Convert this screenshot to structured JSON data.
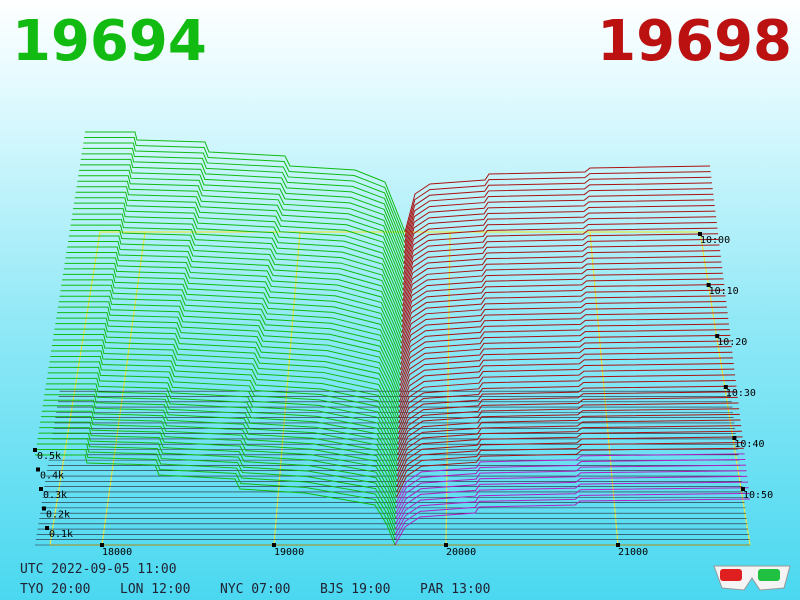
{
  "header": {
    "bid": "19694",
    "ask": "19698"
  },
  "price_labels": [
    "18000",
    "19000",
    "20000",
    "21000"
  ],
  "depth_labels": [
    "0.5k",
    "0.4k",
    "0.3k",
    "0.2k",
    "0.1k"
  ],
  "time_labels": [
    "10:00",
    "10:10",
    "10:20",
    "10:30",
    "10:40",
    "10:50"
  ],
  "footer": {
    "utc": "UTC 2022-09-05 11:00",
    "clocks": [
      "TYO 20:00",
      "LON 12:00",
      "NYC 07:00",
      "BJS 19:00",
      "PAR 13:00"
    ]
  }
}
